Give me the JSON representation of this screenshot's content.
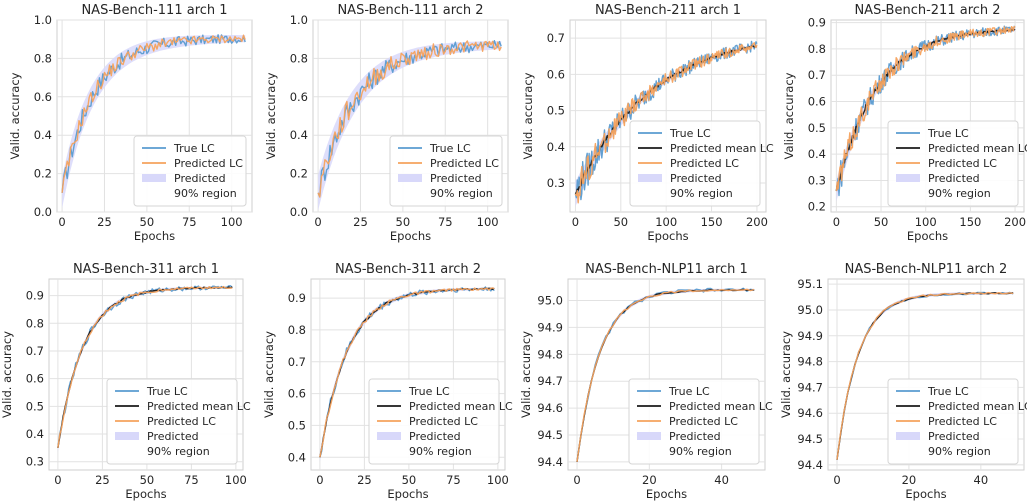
{
  "colors": {
    "true_lc": "#5a9bd0",
    "predicted_lc": "#f5a25d",
    "predicted_mean": "#1a1a1a",
    "region": "#d8d8fa",
    "grid": "#e2e2e2",
    "frame": "#cfcfcf"
  },
  "chart_data": [
    {
      "type": "line",
      "title": "NAS-Bench-111 arch 1",
      "xlabel": "Epochs",
      "ylabel": "Valid. accuracy",
      "xlim": [
        -3,
        112
      ],
      "ylim": [
        0.0,
        1.0
      ],
      "xticks": [
        0,
        25,
        50,
        75,
        100
      ],
      "yticks": [
        0.0,
        0.2,
        0.4,
        0.6,
        0.8,
        1.0
      ],
      "tick_labels_x": [
        "0",
        "25",
        "50",
        "75",
        "100"
      ],
      "tick_labels_y": [
        "0.0",
        "0.2",
        "0.4",
        "0.6",
        "0.8",
        "1.0"
      ],
      "grid": true,
      "legend": {
        "placement": "lower-right",
        "entries": [
          "True LC",
          "Predicted LC",
          "Predicted\n90% region"
        ]
      },
      "curve": {
        "a": 0.1,
        "b": 0.905,
        "k": 0.055,
        "n": 108
      },
      "series": [
        {
          "name": "True LC",
          "noise": 0.035
        },
        {
          "name": "Predicted LC",
          "noise": 0.03
        },
        {
          "name": "Predicted\n90% region",
          "band": 0.07
        }
      ]
    },
    {
      "type": "line",
      "title": "NAS-Bench-111 arch 2",
      "xlabel": "Epochs",
      "ylabel": "Valid. accuracy",
      "xlim": [
        -3,
        112
      ],
      "ylim": [
        0.0,
        1.0
      ],
      "xticks": [
        0,
        25,
        50,
        75,
        100
      ],
      "yticks": [
        0.0,
        0.2,
        0.4,
        0.6,
        0.8,
        1.0
      ],
      "tick_labels_x": [
        "0",
        "25",
        "50",
        "75",
        "100"
      ],
      "tick_labels_y": [
        "0.0",
        "0.2",
        "0.4",
        "0.6",
        "0.8",
        "1.0"
      ],
      "grid": true,
      "legend": {
        "placement": "lower-right",
        "entries": [
          "True LC",
          "Predicted LC",
          "Predicted\n90% region"
        ]
      },
      "curve": {
        "a": 0.1,
        "b": 0.875,
        "k": 0.045,
        "n": 108
      },
      "series": [
        {
          "name": "True LC",
          "noise": 0.045
        },
        {
          "name": "Predicted LC",
          "noise": 0.045
        },
        {
          "name": "Predicted\n90% region",
          "band": 0.08
        }
      ]
    },
    {
      "type": "line",
      "title": "NAS-Bench-211 arch 1",
      "xlabel": "Epochs",
      "ylabel": "Valid. accuracy",
      "xlim": [
        -6,
        210
      ],
      "ylim": [
        0.22,
        0.75
      ],
      "xticks": [
        0,
        50,
        100,
        150,
        200
      ],
      "yticks": [
        0.3,
        0.4,
        0.5,
        0.6,
        0.7
      ],
      "tick_labels_x": [
        "0",
        "50",
        "100",
        "150",
        "200"
      ],
      "tick_labels_y": [
        "0.3",
        "0.4",
        "0.5",
        "0.6",
        "0.7"
      ],
      "grid": true,
      "legend": {
        "placement": "lower-right",
        "entries": [
          "True LC",
          "Predicted mean LC",
          "Predicted LC",
          "Predicted\n90% region"
        ]
      },
      "curve": {
        "a": 0.27,
        "b": 0.72,
        "k": 0.012,
        "n": 200
      },
      "series": [
        {
          "name": "True LC",
          "noise": 0.035
        },
        {
          "name": "Predicted mean LC",
          "noise": 0.006
        },
        {
          "name": "Predicted LC",
          "noise": 0.03
        },
        {
          "name": "Predicted\n90% region",
          "band": 0.03
        }
      ]
    },
    {
      "type": "line",
      "title": "NAS-Bench-211 arch 2",
      "xlabel": "Epochs",
      "ylabel": "Valid. accuracy",
      "xlim": [
        -6,
        210
      ],
      "ylim": [
        0.18,
        0.91
      ],
      "xticks": [
        0,
        50,
        100,
        150,
        200
      ],
      "yticks": [
        0.2,
        0.3,
        0.4,
        0.5,
        0.6,
        0.7,
        0.8,
        0.9
      ],
      "tick_labels_x": [
        "0",
        "50",
        "100",
        "150",
        "200"
      ],
      "tick_labels_y": [
        "0.2",
        "0.3",
        "0.4",
        "0.5",
        "0.6",
        "0.7",
        "0.8",
        "0.9"
      ],
      "grid": true,
      "legend": {
        "placement": "lower-right",
        "entries": [
          "True LC",
          "Predicted mean LC",
          "Predicted LC",
          "Predicted\n90% region"
        ]
      },
      "curve": {
        "a": 0.26,
        "b": 0.88,
        "k": 0.022,
        "n": 200
      },
      "series": [
        {
          "name": "True LC",
          "noise": 0.04
        },
        {
          "name": "Predicted mean LC",
          "noise": 0.008
        },
        {
          "name": "Predicted LC",
          "noise": 0.035
        },
        {
          "name": "Predicted\n90% region",
          "band": 0.035
        }
      ]
    },
    {
      "type": "line",
      "title": "NAS-Bench-311 arch 1",
      "xlabel": "Epochs",
      "ylabel": "Valid. accuracy",
      "xlim": [
        -5,
        104
      ],
      "ylim": [
        0.27,
        0.96
      ],
      "xticks": [
        0,
        25,
        50,
        75,
        100
      ],
      "yticks": [
        0.3,
        0.4,
        0.5,
        0.6,
        0.7,
        0.8,
        0.9
      ],
      "tick_labels_x": [
        "0",
        "25",
        "50",
        "75",
        "100"
      ],
      "tick_labels_y": [
        "0.3",
        "0.4",
        "0.5",
        "0.6",
        "0.7",
        "0.8",
        "0.9"
      ],
      "grid": true,
      "legend": {
        "placement": "lower-right",
        "entries": [
          "True LC",
          "Predicted mean LC",
          "Predicted LC",
          "Predicted\n90% region"
        ]
      },
      "curve": {
        "a": 0.35,
        "b": 0.93,
        "k": 0.07,
        "n": 98
      },
      "series": [
        {
          "name": "True LC",
          "noise": 0.01
        },
        {
          "name": "Predicted mean LC",
          "noise": 0.003
        },
        {
          "name": "Predicted LC",
          "noise": 0.005
        },
        {
          "name": "Predicted\n90% region",
          "band": 0.012
        }
      ]
    },
    {
      "type": "line",
      "title": "NAS-Bench-311 arch 2",
      "xlabel": "Epochs",
      "ylabel": "Valid. accuracy",
      "xlim": [
        -5,
        104
      ],
      "ylim": [
        0.36,
        0.96
      ],
      "xticks": [
        0,
        25,
        50,
        75,
        100
      ],
      "yticks": [
        0.4,
        0.5,
        0.6,
        0.7,
        0.8,
        0.9
      ],
      "tick_labels_x": [
        "0",
        "25",
        "50",
        "75",
        "100"
      ],
      "tick_labels_y": [
        "0.4",
        "0.5",
        "0.6",
        "0.7",
        "0.8",
        "0.9"
      ],
      "grid": true,
      "legend": {
        "placement": "lower-right",
        "entries": [
          "True LC",
          "Predicted mean LC",
          "Predicted LC",
          "Predicted\n90% region"
        ]
      },
      "curve": {
        "a": 0.4,
        "b": 0.93,
        "k": 0.065,
        "n": 98
      },
      "series": [
        {
          "name": "True LC",
          "noise": 0.01
        },
        {
          "name": "Predicted mean LC",
          "noise": 0.003
        },
        {
          "name": "Predicted LC",
          "noise": 0.005
        },
        {
          "name": "Predicted\n90% region",
          "band": 0.012
        }
      ]
    },
    {
      "type": "line",
      "title": "NAS-Bench-NLP11 arch 1",
      "xlabel": "Epochs",
      "ylabel": "Valid. accuracy",
      "xlim": [
        -2.5,
        52
      ],
      "ylim": [
        94.37,
        95.08
      ],
      "xticks": [
        0,
        20,
        40
      ],
      "yticks": [
        94.4,
        94.5,
        94.6,
        94.7,
        94.8,
        94.9,
        95.0
      ],
      "tick_labels_x": [
        "0",
        "20",
        "40"
      ],
      "tick_labels_y": [
        "94.4",
        "94.5",
        "94.6",
        "94.7",
        "94.8",
        "94.9",
        "95.0"
      ],
      "grid": true,
      "legend": {
        "placement": "lower-right",
        "entries": [
          "True LC",
          "Predicted mean LC",
          "Predicted LC",
          "Predicted\n90% region"
        ]
      },
      "curve": {
        "a": 94.4,
        "b": 95.04,
        "k": 0.16,
        "n": 49
      },
      "series": [
        {
          "name": "True LC",
          "noise": 0.006
        },
        {
          "name": "Predicted mean LC",
          "noise": 0.002
        },
        {
          "name": "Predicted LC",
          "noise": 0.003
        },
        {
          "name": "Predicted\n90% region",
          "band": 0.008
        }
      ]
    },
    {
      "type": "line",
      "title": "NAS-Bench-NLP11 arch 2",
      "xlabel": "Epochs",
      "ylabel": "Valid. accuracy",
      "xlim": [
        -2.5,
        52
      ],
      "ylim": [
        94.38,
        95.12
      ],
      "xticks": [
        0,
        20,
        40
      ],
      "yticks": [
        94.4,
        94.5,
        94.6,
        94.7,
        94.8,
        94.9,
        95.0,
        95.1
      ],
      "tick_labels_x": [
        "0",
        "20",
        "40"
      ],
      "tick_labels_y": [
        "94.4",
        "94.5",
        "94.6",
        "94.7",
        "94.8",
        "94.9",
        "95.0",
        "95.1"
      ],
      "grid": true,
      "legend": {
        "placement": "lower-right",
        "entries": [
          "True LC",
          "Predicted mean LC",
          "Predicted LC",
          "Predicted\n90% region"
        ]
      },
      "curve": {
        "a": 94.42,
        "b": 95.065,
        "k": 0.17,
        "n": 49
      },
      "series": [
        {
          "name": "True LC",
          "noise": 0.004
        },
        {
          "name": "Predicted mean LC",
          "noise": 0.002
        },
        {
          "name": "Predicted LC",
          "noise": 0.003
        },
        {
          "name": "Predicted\n90% region",
          "band": 0.008
        }
      ]
    }
  ]
}
